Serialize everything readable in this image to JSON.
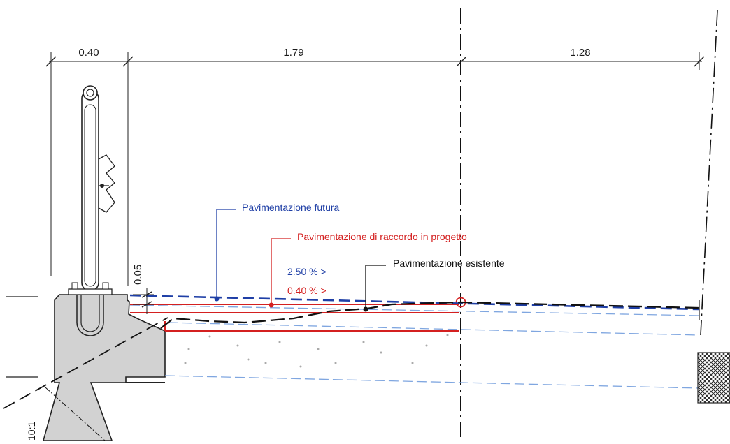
{
  "dimensions": {
    "left_width": "0.40",
    "middle_width": "1.79",
    "right_width": "1.28",
    "layer_thickness": "0.05"
  },
  "labels": {
    "future_pavement": "Pavimentazione futura",
    "connection_pavement": "Pavimentazione di raccordo in progetto",
    "existing_pavement": "Pavimentazione esistente",
    "slope_future": "2.50 % >",
    "slope_connection": "0.40 % >",
    "ratio": "10:1"
  },
  "colors": {
    "future": "#1f3fa6",
    "connection": "#d42020",
    "existing": "#111111",
    "light_blue": "#7fa6e0",
    "concrete": "#d2d2d2"
  }
}
